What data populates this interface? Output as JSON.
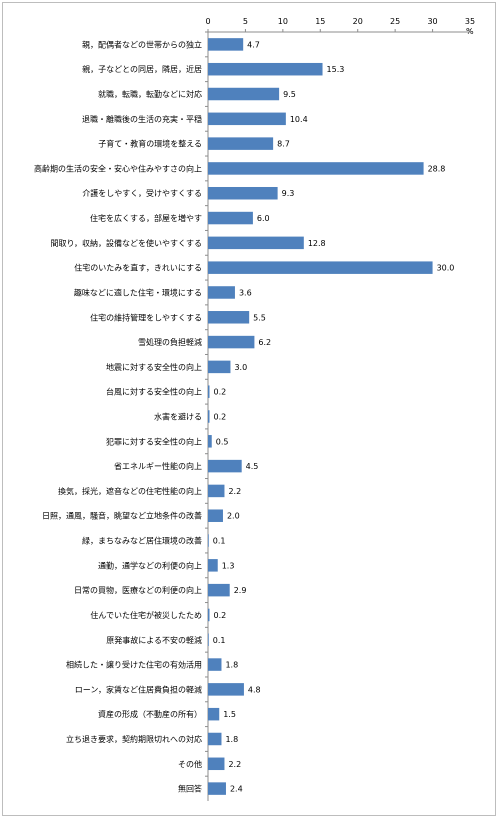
{
  "chart_data": {
    "type": "bar",
    "orientation": "horizontal",
    "unit": "%",
    "xlim": [
      0,
      35
    ],
    "xticks": [
      0,
      5,
      10,
      15,
      20,
      25,
      30,
      35
    ],
    "grid": false,
    "legend": "none",
    "bar_color": "#4f81bd",
    "categories": [
      "親，配偶者などの世帯からの独立",
      "親，子などとの同居，隣居，近居",
      "就職，転職，転勤などに対応",
      "退職・離職後の生活の充実・平穏",
      "子育て・教育の環境を整える",
      "高齢期の生活の安全・安心や住みやすさの向上",
      "介護をしやすく，受けやすくする",
      "住宅を広くする，部屋を増やす",
      "間取り，収納，設備などを使いやすくする",
      "住宅のいたみを直す，きれいにする",
      "趣味などに適した住宅・環境にする",
      "住宅の維持管理をしやすくする",
      "雪処理の負担軽減",
      "地震に対する安全性の向上",
      "台風に対する安全性の向上",
      "水害を避ける",
      "犯罪に対する安全性の向上",
      "省エネルギー性能の向上",
      "換気，採光，遮音などの住宅性能の向上",
      "日照，通風，騒音，眺望など立地条件の改善",
      "緑，まちなみなど居住環境の改善",
      "通勤，通学などの利便の向上",
      "日常の買物，医療などの利便の向上",
      "住んでいた住宅が被災したため",
      "原発事故による不安の軽減",
      "相続した・譲り受けた住宅の有効活用",
      "ローン，家賃など住居費負担の軽減",
      "資産の形成（不動産の所有）",
      "立ち退き要求，契約期限切れへの対応",
      "その他",
      "無回答"
    ],
    "values": [
      4.7,
      15.3,
      9.5,
      10.4,
      8.7,
      28.8,
      9.3,
      6.0,
      12.8,
      30.0,
      3.6,
      5.5,
      6.2,
      3.0,
      0.2,
      0.2,
      0.5,
      4.5,
      2.2,
      2.0,
      0.1,
      1.3,
      2.9,
      0.2,
      0.1,
      1.8,
      4.8,
      1.5,
      1.8,
      2.2,
      2.4
    ],
    "value_labels": [
      "4.7",
      "15.3",
      "9.5",
      "10.4",
      "8.7",
      "28.8",
      "9.3",
      "6.0",
      "12.8",
      "30.0",
      "3.6",
      "5.5",
      "6.2",
      "3.0",
      "0.2",
      "0.2",
      "0.5",
      "4.5",
      "2.2",
      "2.0",
      "0.1",
      "1.3",
      "2.9",
      "0.2",
      "0.1",
      "1.8",
      "4.8",
      "1.5",
      "1.8",
      "2.2",
      "2.4"
    ]
  }
}
